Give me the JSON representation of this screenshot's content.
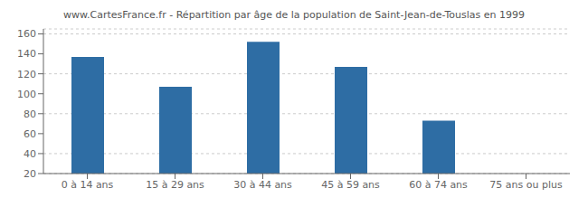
{
  "chart_data": {
    "type": "bar",
    "title": "www.CartesFrance.fr - Répartition par âge de la population de Saint-Jean-de-Touslas en 1999",
    "categories": [
      "0 à 14 ans",
      "15 à 29 ans",
      "30 à 44 ans",
      "45 à 59 ans",
      "60 à 74 ans",
      "75 ans ou plus"
    ],
    "values": [
      137,
      107,
      152,
      127,
      73,
      20
    ],
    "color": "#2e6da4",
    "ylim": [
      20,
      165
    ],
    "yticks": [
      20,
      40,
      60,
      80,
      100,
      120,
      140,
      160
    ],
    "grid": true
  }
}
